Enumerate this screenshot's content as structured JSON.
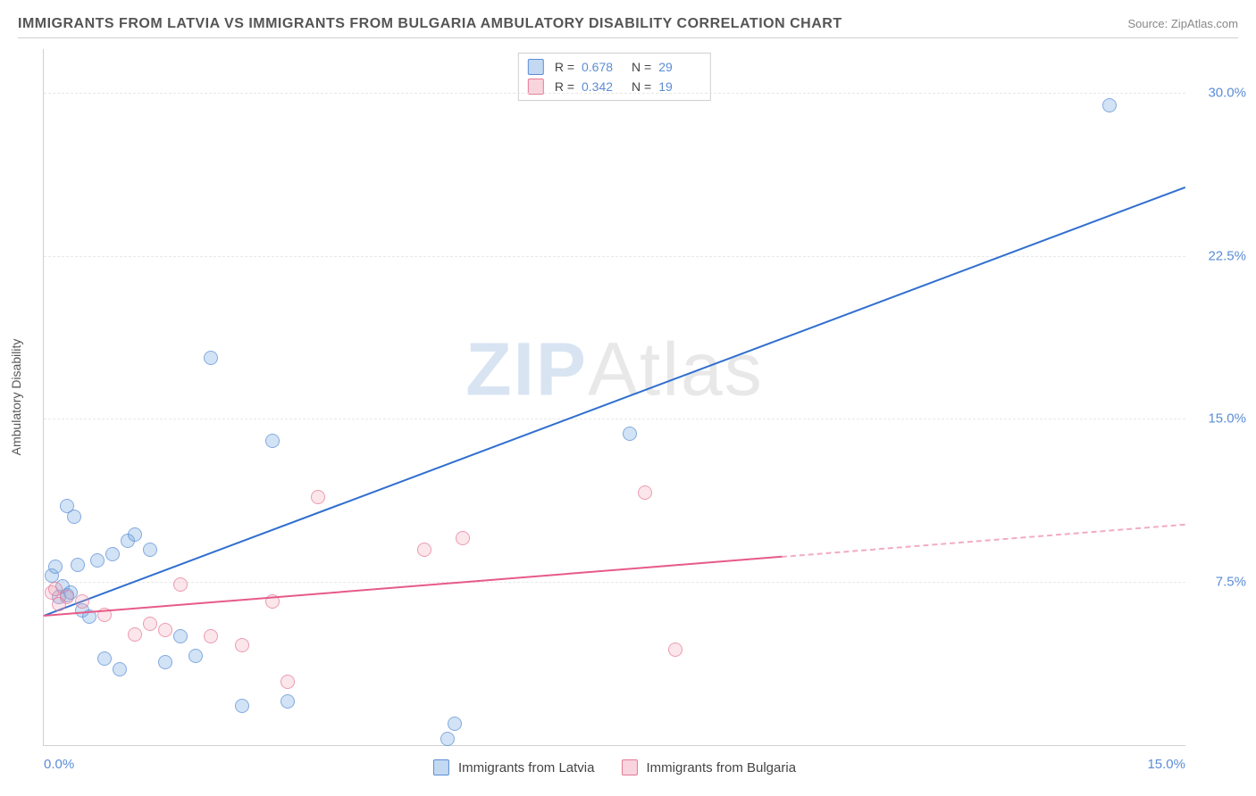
{
  "title": "IMMIGRANTS FROM LATVIA VS IMMIGRANTS FROM BULGARIA AMBULATORY DISABILITY CORRELATION CHART",
  "source_prefix": "Source: ",
  "source_name": "ZipAtlas.com",
  "ylabel": "Ambulatory Disability",
  "watermark_a": "ZIP",
  "watermark_b": "Atlas",
  "chart": {
    "type": "scatter",
    "background_color": "#ffffff",
    "grid_color": "#e8e8e8",
    "xlim": [
      0,
      15
    ],
    "ylim": [
      0,
      32
    ],
    "xticks": [
      {
        "v": 0,
        "label": "0.0%"
      },
      {
        "v": 15,
        "label": "15.0%"
      }
    ],
    "yticks": [
      {
        "v": 7.5,
        "label": "7.5%"
      },
      {
        "v": 15,
        "label": "15.0%"
      },
      {
        "v": 22.5,
        "label": "22.5%"
      },
      {
        "v": 30,
        "label": "30.0%"
      }
    ],
    "tick_color": "#5b8dd6",
    "tick_fontsize": 15,
    "series": [
      {
        "name": "Immigrants from Latvia",
        "color_fill": "rgba(120,170,225,0.45)",
        "color_stroke": "#5b8dd6",
        "line_color": "#2f6fd0",
        "R": "0.678",
        "N": "29",
        "trend": {
          "x0": 0,
          "y0": 6.0,
          "x1": 15,
          "y1": 25.7,
          "solid_until_x": 15
        },
        "points": [
          [
            0.1,
            7.8
          ],
          [
            0.15,
            8.2
          ],
          [
            0.2,
            6.8
          ],
          [
            0.25,
            7.3
          ],
          [
            0.3,
            6.9
          ],
          [
            0.35,
            7.0
          ],
          [
            0.4,
            10.5
          ],
          [
            0.45,
            8.3
          ],
          [
            0.5,
            6.2
          ],
          [
            0.6,
            5.9
          ],
          [
            0.7,
            8.5
          ],
          [
            0.8,
            4.0
          ],
          [
            0.9,
            8.8
          ],
          [
            1.0,
            3.5
          ],
          [
            1.1,
            9.4
          ],
          [
            1.2,
            9.7
          ],
          [
            1.4,
            9.0
          ],
          [
            1.6,
            3.8
          ],
          [
            1.8,
            5.0
          ],
          [
            2.0,
            4.1
          ],
          [
            2.2,
            17.8
          ],
          [
            2.6,
            1.8
          ],
          [
            3.0,
            14.0
          ],
          [
            3.2,
            2.0
          ],
          [
            5.3,
            0.3
          ],
          [
            5.4,
            1.0
          ],
          [
            7.7,
            14.3
          ],
          [
            14.0,
            29.4
          ],
          [
            0.3,
            11.0
          ]
        ]
      },
      {
        "name": "Immigrants from Bulgaria",
        "color_fill": "rgba(240,160,180,0.35)",
        "color_stroke": "#e67a96",
        "line_color": "#e75a88",
        "R": "0.342",
        "N": "19",
        "trend": {
          "x0": 0,
          "y0": 6.0,
          "x1": 15,
          "y1": 10.2,
          "solid_until_x": 9.7
        },
        "points": [
          [
            0.1,
            7.0
          ],
          [
            0.2,
            6.5
          ],
          [
            0.3,
            6.8
          ],
          [
            0.5,
            6.6
          ],
          [
            0.8,
            6.0
          ],
          [
            1.2,
            5.1
          ],
          [
            1.4,
            5.6
          ],
          [
            1.6,
            5.3
          ],
          [
            1.8,
            7.4
          ],
          [
            2.2,
            5.0
          ],
          [
            2.6,
            4.6
          ],
          [
            3.0,
            6.6
          ],
          [
            3.2,
            2.9
          ],
          [
            3.6,
            11.4
          ],
          [
            5.0,
            9.0
          ],
          [
            5.5,
            9.5
          ],
          [
            7.9,
            11.6
          ],
          [
            8.3,
            4.4
          ],
          [
            0.15,
            7.2
          ]
        ]
      }
    ]
  },
  "legend_top_labels": {
    "R": "R =",
    "N": "N ="
  }
}
